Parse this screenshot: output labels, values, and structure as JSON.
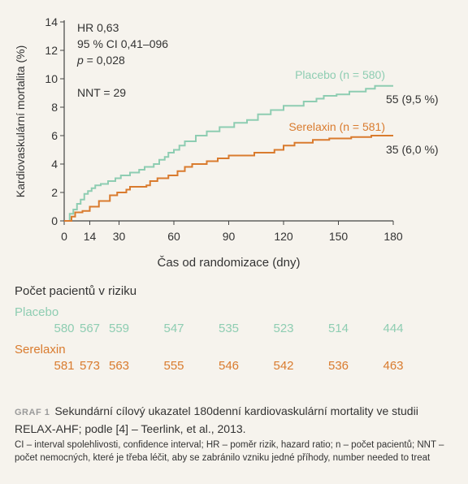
{
  "chart_data": {
    "type": "line",
    "xlabel": "Čas od randomizace (dny)",
    "ylabel": "Kardiovaskulární mortalita (%)",
    "xticks": [
      0,
      14,
      30,
      60,
      90,
      120,
      150,
      180
    ],
    "yticks": [
      0,
      2,
      4,
      6,
      8,
      10,
      12,
      14
    ],
    "xlim": [
      0,
      180
    ],
    "ylim": [
      0,
      14
    ],
    "grid": false,
    "series": [
      {
        "name": "Placebo (n = 580)",
        "end_label": "55 (9,5 %)",
        "color": "#8ecdb2",
        "points": [
          [
            0,
            0
          ],
          [
            3,
            0.5
          ],
          [
            5,
            0.8
          ],
          [
            7,
            1.2
          ],
          [
            9,
            1.5
          ],
          [
            11,
            1.9
          ],
          [
            13,
            2.1
          ],
          [
            15,
            2.3
          ],
          [
            17,
            2.5
          ],
          [
            20,
            2.6
          ],
          [
            24,
            2.8
          ],
          [
            28,
            3.0
          ],
          [
            31,
            3.2
          ],
          [
            36,
            3.4
          ],
          [
            41,
            3.6
          ],
          [
            44,
            3.8
          ],
          [
            49,
            4.0
          ],
          [
            52,
            4.3
          ],
          [
            55,
            4.5
          ],
          [
            57,
            4.8
          ],
          [
            60,
            5.0
          ],
          [
            63,
            5.3
          ],
          [
            66,
            5.6
          ],
          [
            72,
            6.0
          ],
          [
            78,
            6.3
          ],
          [
            85,
            6.6
          ],
          [
            93,
            6.9
          ],
          [
            100,
            7.1
          ],
          [
            106,
            7.5
          ],
          [
            113,
            7.8
          ],
          [
            120,
            8.1
          ],
          [
            131,
            8.4
          ],
          [
            138,
            8.6
          ],
          [
            142,
            8.8
          ],
          [
            149,
            8.9
          ],
          [
            156,
            9.1
          ],
          [
            165,
            9.3
          ],
          [
            170,
            9.5
          ],
          [
            180,
            9.5
          ]
        ]
      },
      {
        "name": "Serelaxin (n = 581)",
        "end_label": "35 (6,0 %)",
        "color": "#d97b2e",
        "points": [
          [
            0,
            0
          ],
          [
            4,
            0.3
          ],
          [
            6,
            0.6
          ],
          [
            10,
            0.7
          ],
          [
            14,
            1.0
          ],
          [
            19,
            1.4
          ],
          [
            25,
            1.8
          ],
          [
            29,
            2.0
          ],
          [
            34,
            2.2
          ],
          [
            36,
            2.4
          ],
          [
            45,
            2.5
          ],
          [
            47,
            2.8
          ],
          [
            51,
            3.0
          ],
          [
            57,
            3.2
          ],
          [
            62,
            3.5
          ],
          [
            66,
            3.8
          ],
          [
            70,
            4.0
          ],
          [
            78,
            4.2
          ],
          [
            84,
            4.4
          ],
          [
            90,
            4.6
          ],
          [
            104,
            4.8
          ],
          [
            115,
            5.0
          ],
          [
            120,
            5.3
          ],
          [
            126,
            5.5
          ],
          [
            136,
            5.7
          ],
          [
            145,
            5.8
          ],
          [
            157,
            5.9
          ],
          [
            168,
            6.0
          ],
          [
            180,
            6.0
          ]
        ]
      }
    ],
    "annotations": {
      "hr": "HR 0,63",
      "ci": "95 % CI 0,41–096",
      "p_label": "p",
      "p_value": " = 0,028",
      "nnt": "NNT = 29"
    }
  },
  "risk_table": {
    "title": "Počet pacientů v riziku",
    "placebo_label": "Placebo",
    "serelaxin_label": "Serelaxin",
    "days": [
      0,
      14,
      30,
      60,
      90,
      120,
      150,
      180
    ],
    "placebo": [
      "580",
      "567",
      "559",
      "547",
      "535",
      "523",
      "514",
      "444"
    ],
    "serelaxin": [
      "581",
      "573",
      "563",
      "555",
      "546",
      "542",
      "536",
      "463"
    ]
  },
  "caption": {
    "label": "GRAF 1",
    "text": "Sekundární cílový ukazatel 180denní kardiovaskulární mortality ve studii RELAX-AHF; podle [4] – Teerlink, et al., 2013."
  },
  "footnote": "CI – interval spolehlivosti, confidence interval; HR – poměr rizik, hazard ratio; n – počet pacientů; NNT – počet nemocných, které je třeba léčit, aby se zabránilo vzniku jedné příhody, number needed to treat"
}
